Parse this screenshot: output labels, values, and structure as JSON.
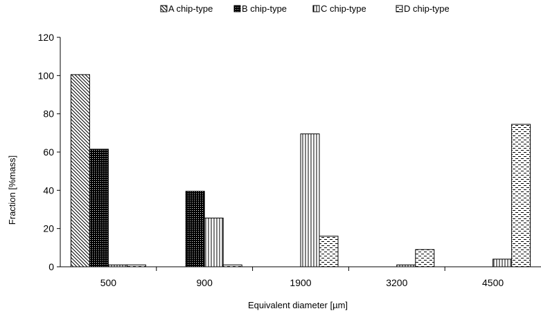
{
  "chart_data": {
    "type": "bar",
    "title": "",
    "xlabel": "Equivalent diameter [µm]",
    "ylabel": "Fraction [%mass]",
    "categories": [
      "500",
      "900",
      "1900",
      "3200",
      "4500"
    ],
    "ylim": [
      0,
      120
    ],
    "yticks": [
      0,
      20,
      40,
      60,
      80,
      100,
      120
    ],
    "grid": false,
    "legend_position": "top",
    "series": [
      {
        "name": "A chip-type",
        "pattern": "diagonal-hatch",
        "values": [
          100.5,
          0,
          0,
          0,
          0
        ]
      },
      {
        "name": "B chip-type",
        "pattern": "dense-dots",
        "values": [
          61.5,
          39.5,
          0,
          0,
          0
        ]
      },
      {
        "name": "C chip-type",
        "pattern": "vertical-lines",
        "values": [
          1,
          25.5,
          69.5,
          1,
          4
        ]
      },
      {
        "name": "D chip-type",
        "pattern": "horizontal-dashes",
        "values": [
          1,
          1,
          16,
          9,
          74.5
        ]
      }
    ]
  }
}
